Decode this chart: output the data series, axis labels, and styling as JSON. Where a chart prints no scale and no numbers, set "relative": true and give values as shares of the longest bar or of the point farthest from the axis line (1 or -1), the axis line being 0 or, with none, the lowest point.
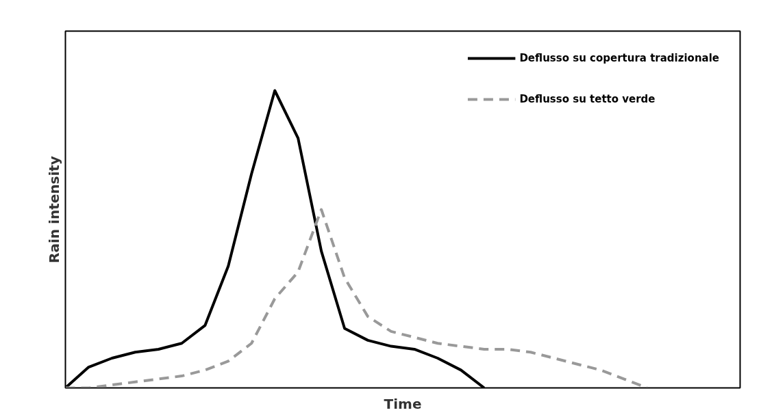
{
  "chart_data": {
    "type": "line",
    "relative": true,
    "xlabel": "Time",
    "ylabel": "Rain intensity",
    "categories": [
      null,
      null,
      null,
      null,
      null,
      null,
      null,
      null,
      null,
      null,
      null,
      null,
      null,
      null,
      null,
      null,
      null,
      null,
      null,
      null,
      null,
      null,
      null,
      null,
      null,
      null,
      null,
      null,
      null,
      null
    ],
    "series": [
      {
        "name": "Deflusso su copertura tradizionale",
        "color": "#000000",
        "line_style": "solid",
        "values": [
          0,
          0.07,
          0.1,
          0.12,
          0.13,
          0.15,
          0.21,
          0.41,
          0.72,
          1,
          0.84,
          0.46,
          0.2,
          0.16,
          0.14,
          0.13,
          0.1,
          0.06,
          0,
          null,
          null,
          null,
          null,
          null,
          null,
          null,
          null,
          null,
          null,
          null
        ]
      },
      {
        "name": "Deflusso su tetto verde",
        "color": "#999999",
        "line_style": "dashed",
        "values": [
          0,
          0.0,
          0.01,
          0.02,
          0.03,
          0.04,
          0.06,
          0.09,
          0.15,
          0.3,
          0.39,
          0.6,
          0.37,
          0.24,
          0.19,
          0.17,
          0.15,
          0.14,
          0.13,
          0.13,
          0.12,
          0.1,
          0.08,
          0.06,
          0.03,
          0,
          null,
          null,
          null,
          null
        ]
      }
    ],
    "legend": "top right",
    "grid": false,
    "marker": "none"
  }
}
